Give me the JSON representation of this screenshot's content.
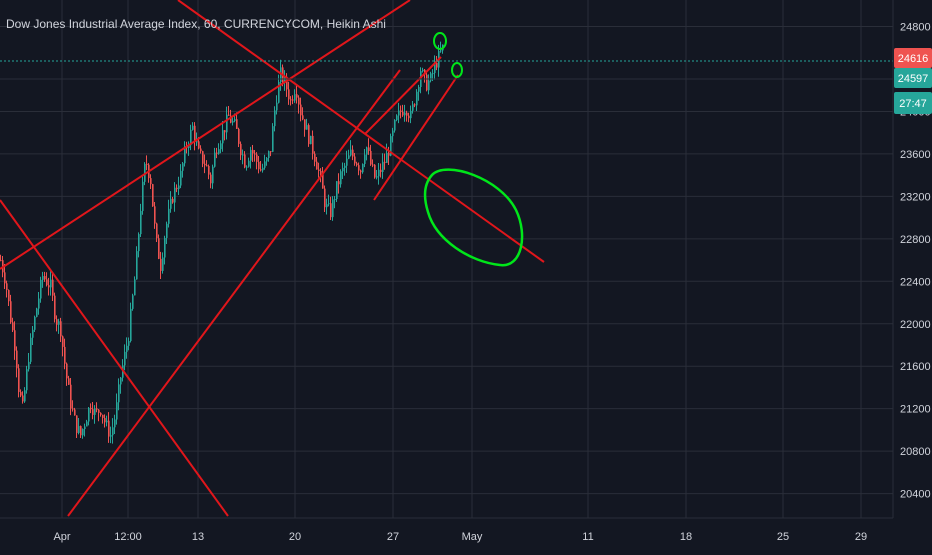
{
  "header": {
    "symbol_title": "Dow Jones Industrial Average Index, 60, CURRENCYCOM, Heikin Ashi"
  },
  "colors": {
    "background": "#131722",
    "grid": "#2a2e39",
    "axis_text": "#d1d4dc",
    "up_candle": "#26a69a",
    "down_candle": "#ef5350",
    "trendline": "#e0161b",
    "annotation": "#00e61a",
    "last_price_badge": "#ef5350",
    "bid_badge": "#26a69a",
    "countdown_badge": "#26a69a",
    "price_line": "#26a69a"
  },
  "chart_data": {
    "type": "candlestick",
    "title": "Dow Jones Industrial Average Index, 60, CURRENCYCOM, Heikin Ashi",
    "x_tick_labels": [
      "Apr",
      "12:00",
      "13",
      "20",
      "27",
      "May",
      "11",
      "18",
      "25",
      "29"
    ],
    "y_tick_labels": [
      "24800",
      "24000",
      "23600",
      "23200",
      "22800",
      "22400",
      "22000",
      "21600",
      "21200",
      "20800",
      "20400"
    ],
    "ylim": [
      20170,
      25050
    ],
    "grid": true,
    "price_badges": {
      "last_price": "24616",
      "second_price": "24597",
      "countdown": "27:47"
    },
    "price_path_approx": [
      [
        0,
        22600
      ],
      [
        5,
        22400
      ],
      [
        10,
        22050
      ],
      [
        15,
        21750
      ],
      [
        18,
        21400
      ],
      [
        22,
        21200
      ],
      [
        28,
        21700
      ],
      [
        35,
        22100
      ],
      [
        42,
        22450
      ],
      [
        50,
        22350
      ],
      [
        55,
        22050
      ],
      [
        60,
        21950
      ],
      [
        65,
        21550
      ],
      [
        70,
        21250
      ],
      [
        75,
        21050
      ],
      [
        80,
        20950
      ],
      [
        85,
        21100
      ],
      [
        90,
        21250
      ],
      [
        95,
        21150
      ],
      [
        100,
        21200
      ],
      [
        105,
        21050
      ],
      [
        110,
        20950
      ],
      [
        115,
        21150
      ],
      [
        120,
        21500
      ],
      [
        128,
        21900
      ],
      [
        135,
        22500
      ],
      [
        140,
        23100
      ],
      [
        145,
        23550
      ],
      [
        150,
        23350
      ],
      [
        155,
        22800
      ],
      [
        160,
        22550
      ],
      [
        165,
        22900
      ],
      [
        172,
        23200
      ],
      [
        180,
        23400
      ],
      [
        185,
        23650
      ],
      [
        192,
        23850
      ],
      [
        198,
        23600
      ],
      [
        205,
        23500
      ],
      [
        210,
        23350
      ],
      [
        215,
        23650
      ],
      [
        222,
        23800
      ],
      [
        228,
        23950
      ],
      [
        235,
        23850
      ],
      [
        240,
        23650
      ],
      [
        245,
        23500
      ],
      [
        250,
        23650
      ],
      [
        255,
        23550
      ],
      [
        260,
        23450
      ],
      [
        265,
        23500
      ],
      [
        270,
        23650
      ],
      [
        275,
        24100
      ],
      [
        280,
        24350
      ],
      [
        285,
        24250
      ],
      [
        290,
        24100
      ],
      [
        295,
        24250
      ],
      [
        300,
        24000
      ],
      [
        305,
        23850
      ],
      [
        310,
        23700
      ],
      [
        315,
        23550
      ],
      [
        320,
        23350
      ],
      [
        325,
        23100
      ],
      [
        330,
        23050
      ],
      [
        335,
        23250
      ],
      [
        340,
        23400
      ],
      [
        345,
        23500
      ],
      [
        350,
        23600
      ],
      [
        355,
        23550
      ],
      [
        360,
        23450
      ],
      [
        365,
        23700
      ],
      [
        370,
        23500
      ],
      [
        375,
        23350
      ],
      [
        380,
        23450
      ],
      [
        385,
        23550
      ],
      [
        390,
        23700
      ],
      [
        395,
        23900
      ],
      [
        400,
        24000
      ],
      [
        405,
        24050
      ],
      [
        410,
        23950
      ],
      [
        415,
        24150
      ],
      [
        420,
        24400
      ],
      [
        425,
        24250
      ],
      [
        430,
        24300
      ],
      [
        435,
        24450
      ],
      [
        440,
        24550
      ],
      [
        443,
        24616
      ]
    ]
  }
}
